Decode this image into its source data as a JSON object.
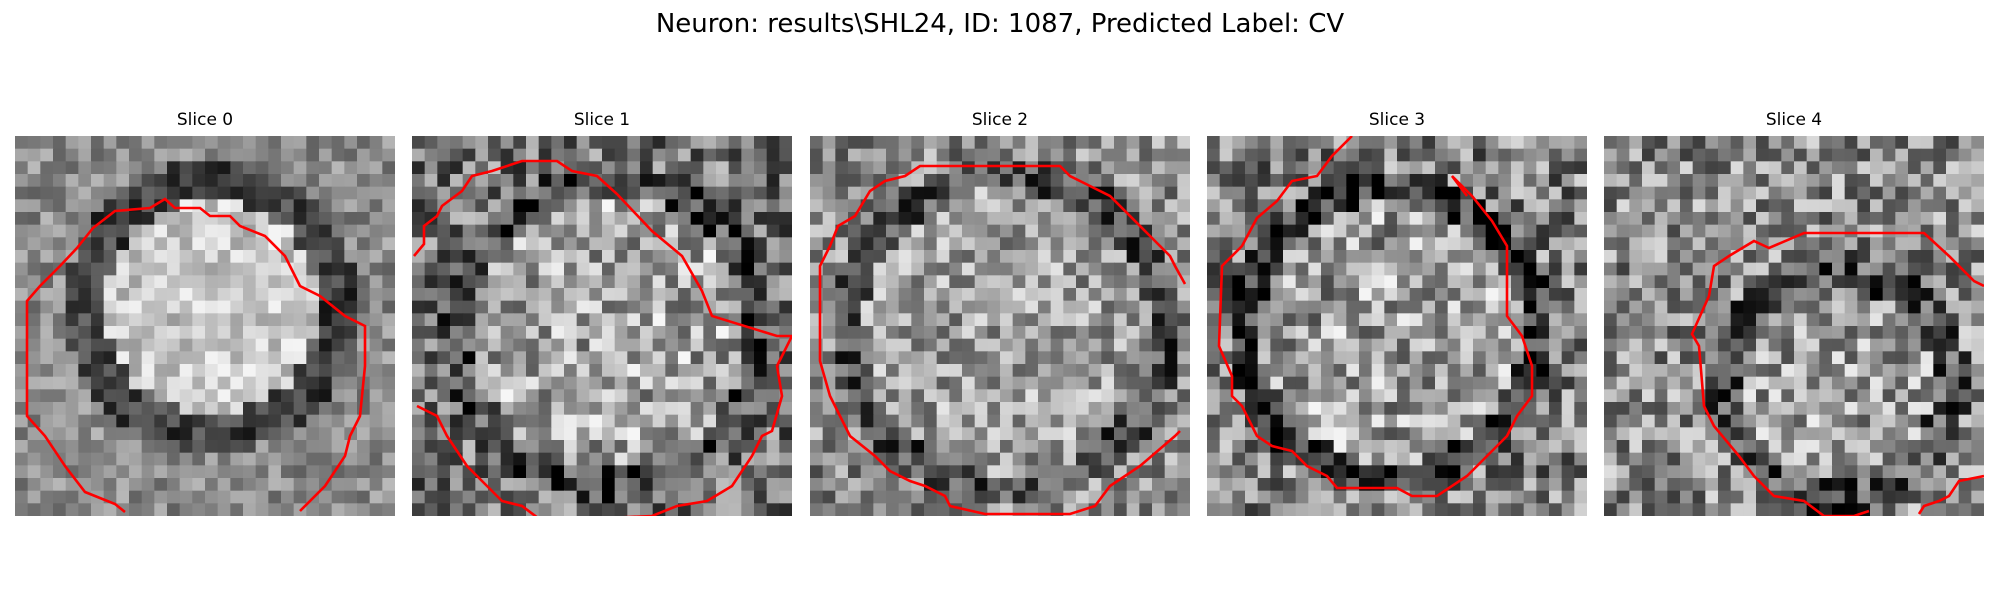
{
  "figure": {
    "title": "Neuron: results\\SHL24, ID: 1087, Predicted Label: CV"
  },
  "panels": [
    {
      "title": "Slice 0",
      "tone": "bright-center-dark-ring",
      "contour_color": "#ff0000"
    },
    {
      "title": "Slice 1",
      "tone": "speckled-bright-center",
      "contour_color": "#ff0000"
    },
    {
      "title": "Slice 2",
      "tone": "speckled-uniform",
      "contour_color": "#ff0000"
    },
    {
      "title": "Slice 3",
      "tone": "speckled-dark-ring",
      "contour_color": "#ff0000"
    },
    {
      "title": "Slice 4",
      "tone": "speckled-lower-right-cell",
      "contour_color": "#ff0000"
    }
  ],
  "colors": {
    "background": "#ffffff",
    "contour": "#ff0000",
    "colormap": "grayscale"
  }
}
